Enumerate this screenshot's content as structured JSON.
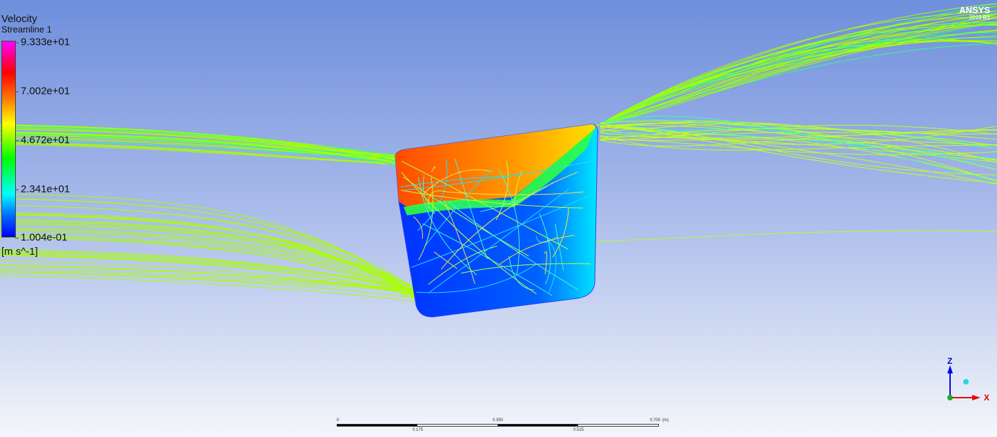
{
  "legend": {
    "title": "Velocity",
    "subtitle": "Streamline 1",
    "ticks": [
      "9.333e+01",
      "7.002e+01",
      "4.672e+01",
      "2.341e+01",
      "1.004e-01"
    ],
    "unit": "[m s^-1]",
    "range": [
      0.1004,
      93.33
    ]
  },
  "logo": {
    "brand": "ANSYS",
    "version": "2019",
    "release": "R1"
  },
  "scale_bar": {
    "top_labels": [
      "0",
      "0.350",
      "0.700"
    ],
    "unit": "(m)",
    "bottom_labels": [
      "0.175",
      "0.525"
    ]
  },
  "axes": {
    "z": "Z",
    "x": "X"
  },
  "colors": {
    "streamline": "#9cff00",
    "body_top": "#ff7a00",
    "body_bottom": "#0a30ff",
    "z_axis": "#0000ff",
    "x_axis": "#ff0000"
  }
}
